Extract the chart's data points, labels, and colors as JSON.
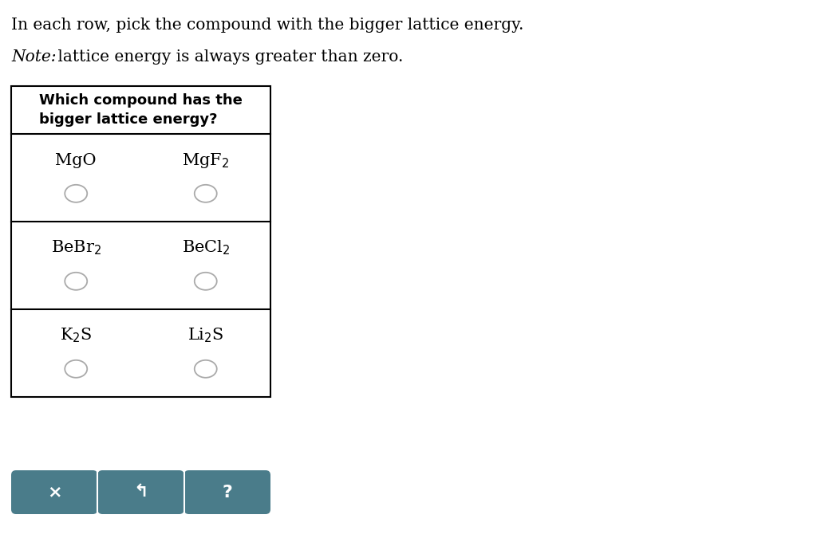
{
  "title": "In each row, pick the compound with the bigger lattice energy.",
  "note_italic": "Note:",
  "note_rest": " lattice energy is always greater than zero.",
  "table_header": "Which compound has the\nbigger lattice energy?",
  "rows": [
    [
      "MgO",
      "MgF$_2$"
    ],
    [
      "BeBr$_2$",
      "BeCl$_2$"
    ],
    [
      "K$_2$S",
      "Li$_2$S"
    ]
  ],
  "background_color": "#ffffff",
  "button_color": "#4a7c8a",
  "button_text_color": "#ffffff",
  "button_labels": [
    "×",
    "↰",
    "?"
  ],
  "title_fontsize": 14.5,
  "note_fontsize": 14.5,
  "header_fontsize": 13,
  "cell_fontsize": 15
}
